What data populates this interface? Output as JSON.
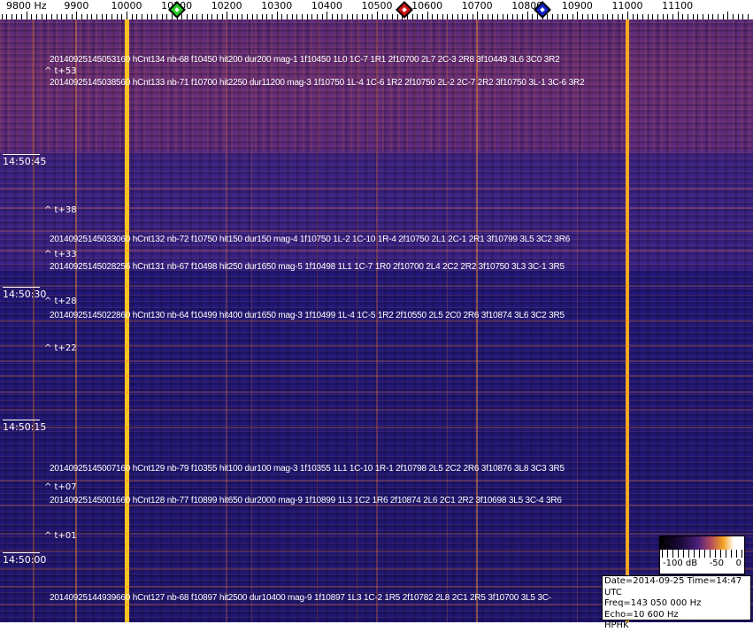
{
  "axis": {
    "labels": [
      {
        "freq": 9800,
        "text": "9800 Hz"
      },
      {
        "freq": 9900,
        "text": "9900"
      },
      {
        "freq": 10000,
        "text": "10000"
      },
      {
        "freq": 10100,
        "text": "10100"
      },
      {
        "freq": 10200,
        "text": "10200"
      },
      {
        "freq": 10300,
        "text": "10300"
      },
      {
        "freq": 10400,
        "text": "10400"
      },
      {
        "freq": 10500,
        "text": "10500"
      },
      {
        "freq": 10600,
        "text": "10600"
      },
      {
        "freq": 10700,
        "text": "10700"
      },
      {
        "freq": 10800,
        "text": "10800"
      },
      {
        "freq": 10900,
        "text": "10900"
      },
      {
        "freq": 11000,
        "text": "11000"
      },
      {
        "freq": 11100,
        "text": "11100"
      }
    ],
    "markers": [
      {
        "freq": 10100,
        "color": "#22cc22",
        "name": "green"
      },
      {
        "freq": 10555,
        "color": "#cc1111",
        "name": "red"
      },
      {
        "freq": 10830,
        "color": "#1122cc",
        "name": "blue"
      }
    ]
  },
  "time_labels": [
    "14:50:45",
    "14:50:30",
    "14:50:15",
    "14:50:00"
  ],
  "t_marks": [
    "^ t+53",
    "^ t+38",
    "^ t+33",
    "^ t+28",
    "^ t+22",
    "^ t+07",
    "^ t+01"
  ],
  "detections": [
    "20140925145053160 hCnt134 nb-68 f10450 hit200 dur200 mag-1 1f10450 1L0 1C-7 1R1 2f10700 2L7 2C-3 2R8 3f10449 3L6 3C0 3R2",
    "20140925145038560 hCnt133 nb-71 f10700 hit2250 dur11200 mag-3 1f10750 1L-4 1C-6 1R2 2f10750 2L-2 2C-7 2R2 3f10750 3L-1 3C-6 3R2",
    "20140925145033060 hCnt132 nb-72 f10750 hit150 dur150 mag-4 1f10750 1L-2 1C-10 1R-4 2f10750 2L1 2C-1 2R1 3f10799 3L5 3C2 3R6",
    "20140925145028256 hCnt131 nb-67 f10498 hit250 dur1650 mag-5 1f10498 1L1 1C-7 1R0 2f10700 2L4 2C2 2R2 3f10750 3L3 3C-1 3R5",
    "20140925145022860 hCnt130 nb-64 f10499 hit400 dur1650 mag-3 1f10499 1L-4 1C-5 1R2 2f10550 2L5 2C0 2R6 3f10874 3L6 3C2 3R5",
    "20140925145007160 hCnt129 nb-79 f10355 hit100 dur100 mag-3 1f10355 1L1 1C-10 1R-1 2f10798 2L5 2C2 2R6 3f10876 3L8 3C3 3R5",
    "20140925145001660 hCnt128 nb-77 f10899 hit650 dur2000 mag-9 1f10899 1L3 1C2 1R6 2f10874 2L6 2C1 2R2 3f10698 3L5 3C-4 3R6",
    "20140925144939660 hCnt127 nb-68 f10897 hit2500 dur10400 mag-9 1f10897 1L3 1C-2 1R5 2f10782 2L8 2C1 2R5 3f10700 3L5 3C-"
  ],
  "colorbar": {
    "min_label": "-100 dB",
    "mid_label": "-50",
    "max_label": "0"
  },
  "info": {
    "date_time": "Date=2014-09-25 Time=14:47 UTC",
    "freq": "Freq=143 050 000 Hz",
    "echo": "Echo=10 600 Hz",
    "station": "HPHK"
  }
}
